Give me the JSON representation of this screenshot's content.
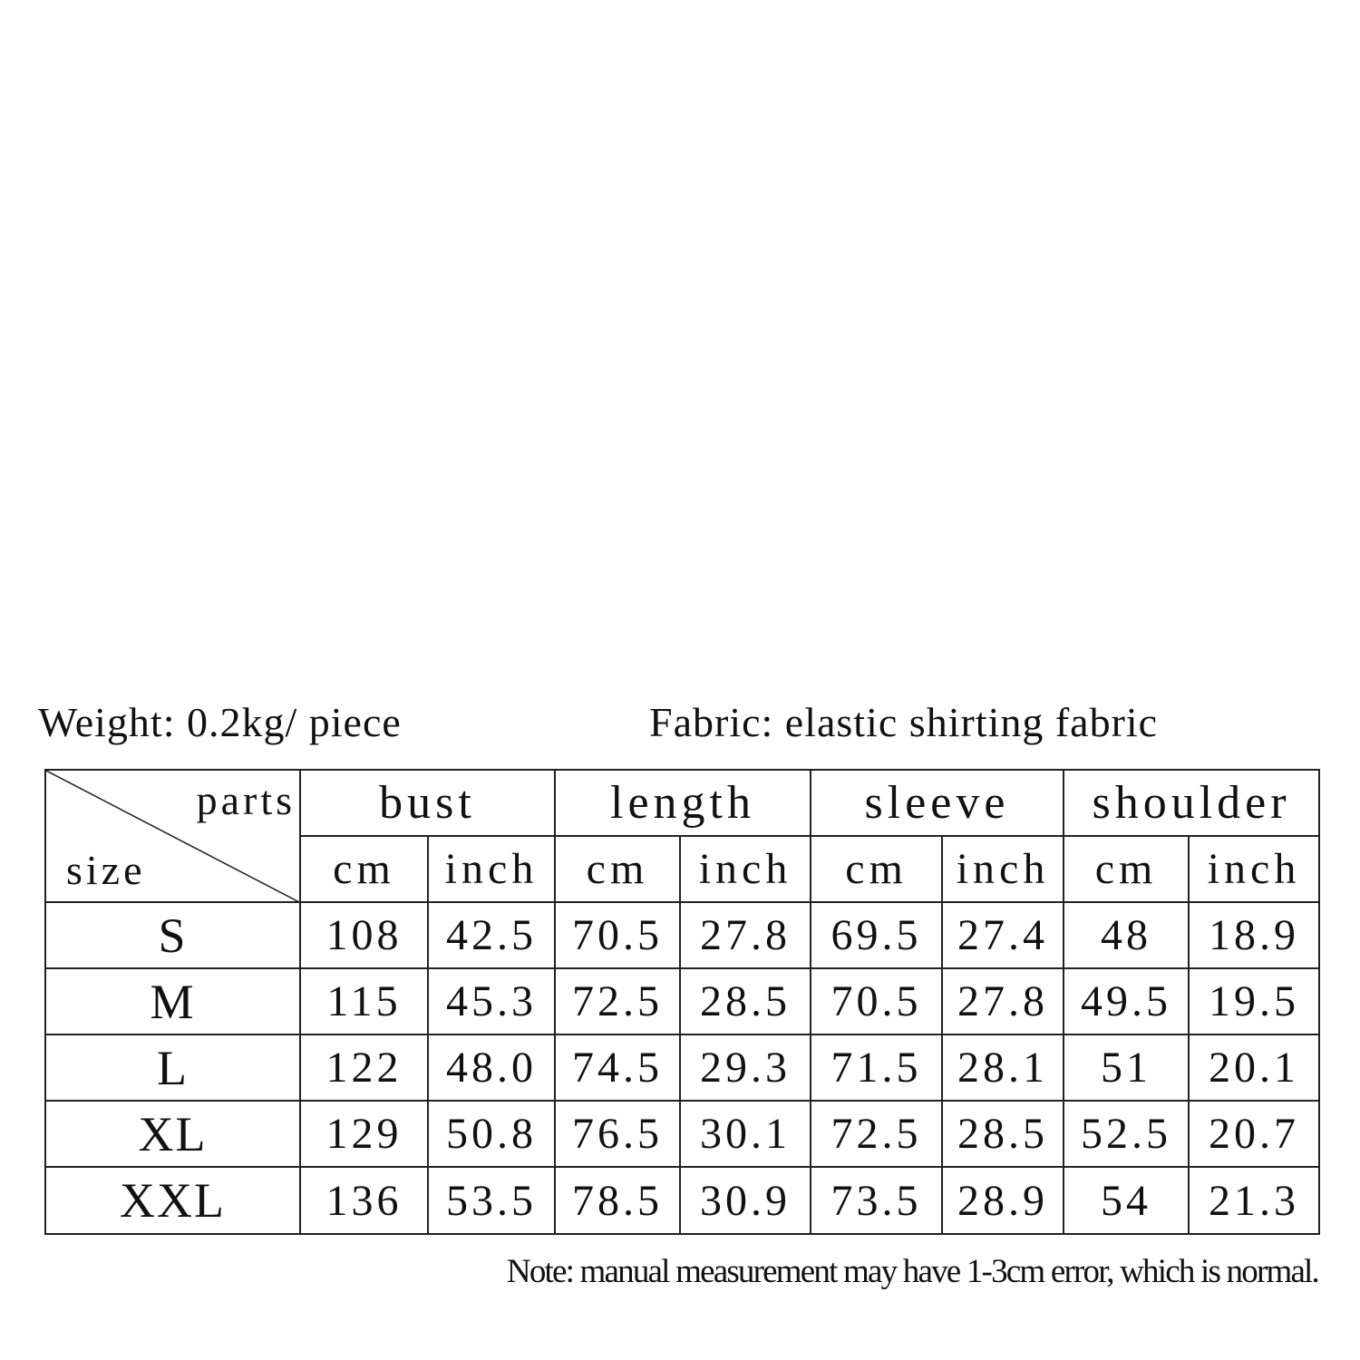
{
  "header": {
    "weight": "Weight: 0.2kg/ piece",
    "fabric": "Fabric: elastic shirting fabric"
  },
  "table": {
    "corner_top": "parts",
    "corner_bottom": "size",
    "parts": [
      "bust",
      "length",
      "sleeve",
      "shoulder"
    ],
    "units": [
      "cm",
      "inch",
      "cm",
      "inch",
      "cm",
      "inch",
      "cm",
      "inch"
    ],
    "rows": [
      {
        "size": "S",
        "values": [
          "108",
          "42.5",
          "70.5",
          "27.8",
          "69.5",
          "27.4",
          "48",
          "18.9"
        ]
      },
      {
        "size": "M",
        "values": [
          "115",
          "45.3",
          "72.5",
          "28.5",
          "70.5",
          "27.8",
          "49.5",
          "19.5"
        ]
      },
      {
        "size": "L",
        "values": [
          "122",
          "48.0",
          "74.5",
          "29.3",
          "71.5",
          "28.1",
          "51",
          "20.1"
        ]
      },
      {
        "size": "XL",
        "values": [
          "129",
          "50.8",
          "76.5",
          "30.1",
          "72.5",
          "28.5",
          "52.5",
          "20.7"
        ]
      },
      {
        "size": "XXL",
        "values": [
          "136",
          "53.5",
          "78.5",
          "30.9",
          "73.5",
          "28.9",
          "54",
          "21.3"
        ]
      }
    ]
  },
  "note": "Note: manual measurement may have 1-3cm error, which is normal."
}
